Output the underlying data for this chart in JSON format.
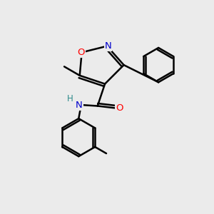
{
  "bg_color": "#ebebeb",
  "bond_color": "#000000",
  "bond_width": 1.8,
  "atom_colors": {
    "O": "#ff0000",
    "N": "#0000cd",
    "H": "#2e8b8b",
    "C": "#000000"
  },
  "figsize": [
    3.0,
    3.0
  ],
  "dpi": 100
}
